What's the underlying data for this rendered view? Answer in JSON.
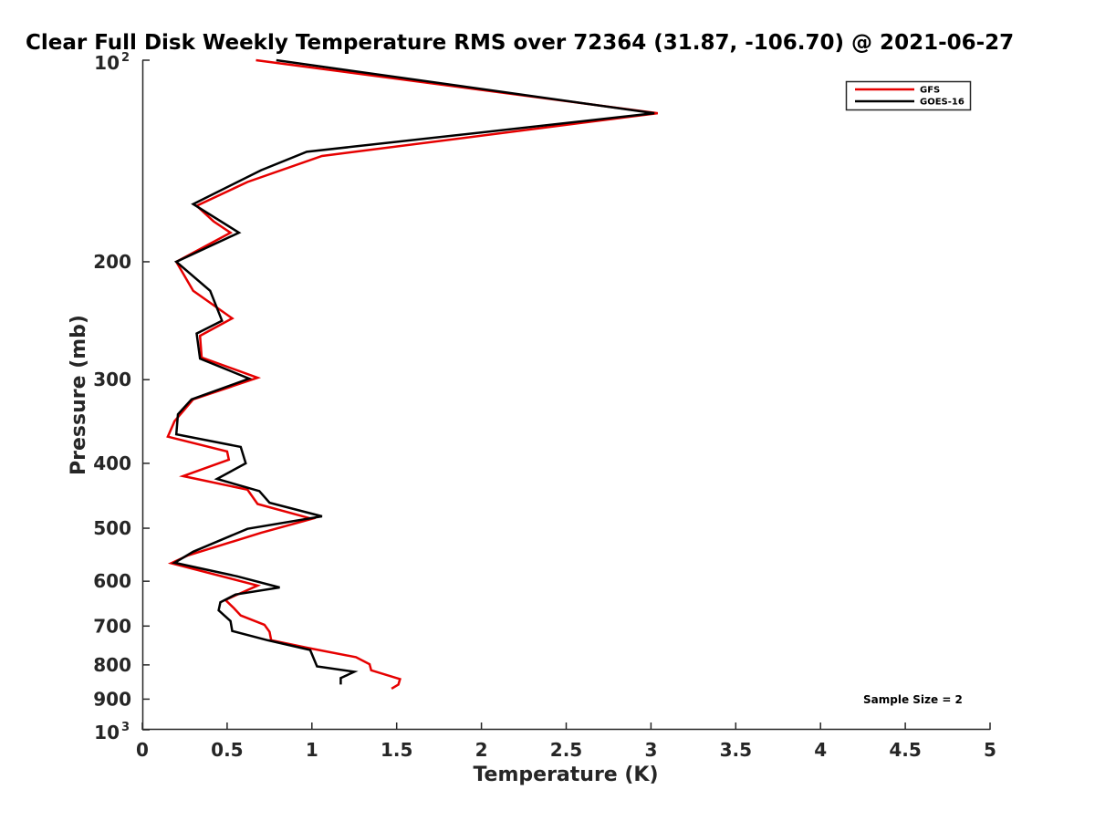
{
  "chart_data": {
    "type": "line",
    "title": "Clear Full Disk Weekly Temperature RMS over 72364 (31.87, -106.70) @ 2021-06-27",
    "xlabel": "Temperature (K)",
    "ylabel": "Pressure (mb)",
    "xlim": [
      0,
      5
    ],
    "ylim": [
      100,
      1000
    ],
    "y_scale": "log",
    "y_reversed": true,
    "x_ticks": [
      "0",
      "0.5",
      "1",
      "1.5",
      "2",
      "2.5",
      "3",
      "3.5",
      "4",
      "4.5",
      "5"
    ],
    "y_ticks": [
      {
        "value": 200,
        "label": "200"
      },
      {
        "value": 300,
        "label": "300"
      },
      {
        "value": 400,
        "label": "400"
      },
      {
        "value": 500,
        "label": "500"
      },
      {
        "value": 600,
        "label": "600"
      },
      {
        "value": 700,
        "label": "700"
      },
      {
        "value": 800,
        "label": "800"
      },
      {
        "value": 900,
        "label": "900"
      }
    ],
    "y_decade_ticks": [
      {
        "value": 100,
        "base": "10",
        "exp": "2"
      },
      {
        "value": 1000,
        "base": "10",
        "exp": "3"
      }
    ],
    "grid": false,
    "legend_position": "top-right",
    "annotation": "Sample Size = 2",
    "series": [
      {
        "name": "GFS",
        "color": "#e60000",
        "points": [
          {
            "t": 0.67,
            "p": 100
          },
          {
            "t": 3.04,
            "p": 120
          },
          {
            "t": 1.06,
            "p": 139
          },
          {
            "t": 0.62,
            "p": 152
          },
          {
            "t": 0.32,
            "p": 165
          },
          {
            "t": 0.42,
            "p": 174
          },
          {
            "t": 0.52,
            "p": 181
          },
          {
            "t": 0.2,
            "p": 200
          },
          {
            "t": 0.3,
            "p": 221
          },
          {
            "t": 0.53,
            "p": 243
          },
          {
            "t": 0.34,
            "p": 258
          },
          {
            "t": 0.35,
            "p": 278
          },
          {
            "t": 0.68,
            "p": 298
          },
          {
            "t": 0.3,
            "p": 321
          },
          {
            "t": 0.19,
            "p": 346
          },
          {
            "t": 0.15,
            "p": 365
          },
          {
            "t": 0.5,
            "p": 384
          },
          {
            "t": 0.51,
            "p": 395
          },
          {
            "t": 0.24,
            "p": 418
          },
          {
            "t": 0.62,
            "p": 438
          },
          {
            "t": 0.68,
            "p": 460
          },
          {
            "t": 1.0,
            "p": 484
          },
          {
            "t": 0.7,
            "p": 508
          },
          {
            "t": 0.27,
            "p": 549
          },
          {
            "t": 0.17,
            "p": 564
          },
          {
            "t": 0.68,
            "p": 609
          },
          {
            "t": 0.49,
            "p": 640
          },
          {
            "t": 0.54,
            "p": 658
          },
          {
            "t": 0.58,
            "p": 675
          },
          {
            "t": 0.72,
            "p": 697
          },
          {
            "t": 0.75,
            "p": 714
          },
          {
            "t": 0.76,
            "p": 735
          },
          {
            "t": 0.97,
            "p": 754
          },
          {
            "t": 1.26,
            "p": 779
          },
          {
            "t": 1.34,
            "p": 798
          },
          {
            "t": 1.35,
            "p": 815
          },
          {
            "t": 1.52,
            "p": 840
          },
          {
            "t": 1.51,
            "p": 856
          },
          {
            "t": 1.47,
            "p": 868
          }
        ]
      },
      {
        "name": "GOES-16",
        "color": "#000000",
        "points": [
          {
            "t": 0.79,
            "p": 100
          },
          {
            "t": 3.02,
            "p": 120
          },
          {
            "t": 0.97,
            "p": 137
          },
          {
            "t": 0.7,
            "p": 146
          },
          {
            "t": 0.3,
            "p": 164
          },
          {
            "t": 0.57,
            "p": 181
          },
          {
            "t": 0.2,
            "p": 200
          },
          {
            "t": 0.4,
            "p": 221
          },
          {
            "t": 0.47,
            "p": 245
          },
          {
            "t": 0.32,
            "p": 256
          },
          {
            "t": 0.34,
            "p": 279
          },
          {
            "t": 0.63,
            "p": 299
          },
          {
            "t": 0.29,
            "p": 321
          },
          {
            "t": 0.21,
            "p": 338
          },
          {
            "t": 0.2,
            "p": 362
          },
          {
            "t": 0.58,
            "p": 378
          },
          {
            "t": 0.61,
            "p": 400
          },
          {
            "t": 0.44,
            "p": 422
          },
          {
            "t": 0.69,
            "p": 440
          },
          {
            "t": 0.75,
            "p": 458
          },
          {
            "t": 1.06,
            "p": 480
          },
          {
            "t": 0.62,
            "p": 501
          },
          {
            "t": 0.3,
            "p": 542
          },
          {
            "t": 0.19,
            "p": 563
          },
          {
            "t": 0.56,
            "p": 590
          },
          {
            "t": 0.81,
            "p": 613
          },
          {
            "t": 0.55,
            "p": 628
          },
          {
            "t": 0.46,
            "p": 645
          },
          {
            "t": 0.45,
            "p": 663
          },
          {
            "t": 0.52,
            "p": 688
          },
          {
            "t": 0.53,
            "p": 712
          },
          {
            "t": 0.74,
            "p": 735
          },
          {
            "t": 0.99,
            "p": 760
          },
          {
            "t": 1.03,
            "p": 804
          },
          {
            "t": 1.25,
            "p": 819
          },
          {
            "t": 1.17,
            "p": 837
          },
          {
            "t": 1.17,
            "p": 856
          }
        ]
      }
    ]
  }
}
